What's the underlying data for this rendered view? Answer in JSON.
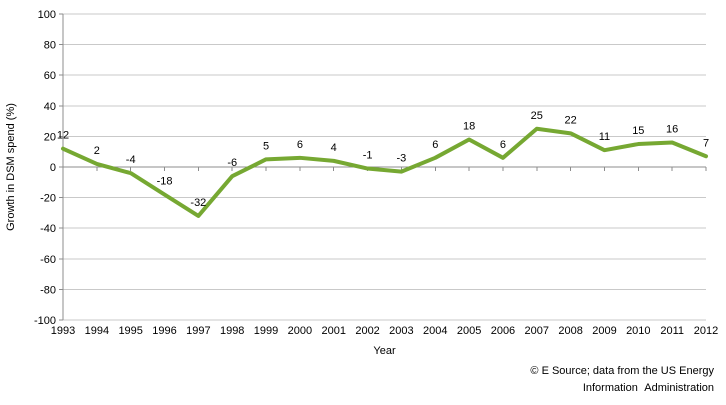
{
  "chart_data": {
    "type": "line",
    "title": "",
    "xlabel": "Year",
    "ylabel": "Growth in DSM spend (%)",
    "categories": [
      "1993",
      "1994",
      "1995",
      "1996",
      "1997",
      "1998",
      "1999",
      "2000",
      "2001",
      "2002",
      "2003",
      "2004",
      "2005",
      "2006",
      "2007",
      "2008",
      "2009",
      "2010",
      "2011",
      "2012"
    ],
    "values": [
      12,
      2,
      -4,
      -18,
      -32,
      -6,
      5,
      6,
      4,
      -1,
      -3,
      6,
      18,
      6,
      25,
      22,
      11,
      15,
      16,
      7
    ],
    "ylim": [
      -100,
      100
    ],
    "ytick_step": 20,
    "grid": true,
    "legend_position": "none",
    "data_labels": true,
    "colors": {
      "line": "#76A832",
      "gridline": "#C9C9C9",
      "axis": "#8C8C8C",
      "text": "#000000"
    }
  },
  "attribution": {
    "line1": "© E Source; data from the US Energy",
    "line2": "Information Administration"
  }
}
